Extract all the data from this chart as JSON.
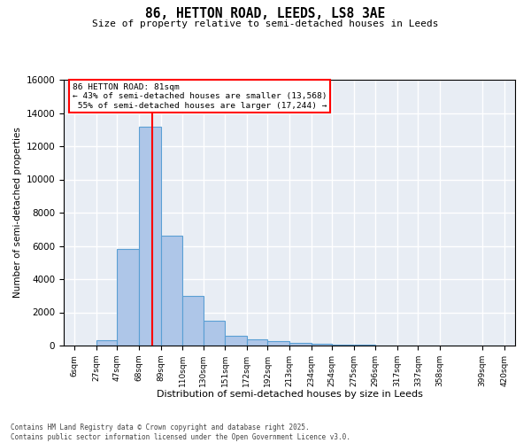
{
  "title": "86, HETTON ROAD, LEEDS, LS8 3AE",
  "subtitle": "Size of property relative to semi-detached houses in Leeds",
  "xlabel": "Distribution of semi-detached houses by size in Leeds",
  "ylabel": "Number of semi-detached properties",
  "property_size": 81,
  "property_label": "86 HETTON ROAD: 81sqm",
  "pct_smaller": 43,
  "pct_larger": 55,
  "count_smaller": 13568,
  "count_larger": 17244,
  "bin_labels": [
    "6sqm",
    "27sqm",
    "47sqm",
    "68sqm",
    "89sqm",
    "110sqm",
    "130sqm",
    "151sqm",
    "172sqm",
    "192sqm",
    "213sqm",
    "234sqm",
    "254sqm",
    "275sqm",
    "296sqm",
    "317sqm",
    "337sqm",
    "358sqm",
    "399sqm",
    "420sqm"
  ],
  "bin_edges": [
    6,
    27,
    47,
    68,
    89,
    110,
    130,
    151,
    172,
    192,
    213,
    234,
    254,
    275,
    296,
    317,
    337,
    358,
    399,
    420
  ],
  "bar_values": [
    0,
    300,
    5800,
    13200,
    6600,
    3000,
    1500,
    600,
    350,
    250,
    150,
    100,
    80,
    50,
    0,
    0,
    0,
    0,
    0
  ],
  "bar_color": "#aec6e8",
  "bar_edge_color": "#5a9fd4",
  "property_line_x": 81,
  "vline_color": "red",
  "background_color": "#e8edf4",
  "grid_color": "white",
  "ylim": [
    0,
    16000
  ],
  "yticks": [
    0,
    2000,
    4000,
    6000,
    8000,
    10000,
    12000,
    14000,
    16000
  ],
  "footer_line1": "Contains HM Land Registry data © Crown copyright and database right 2025.",
  "footer_line2": "Contains public sector information licensed under the Open Government Licence v3.0."
}
